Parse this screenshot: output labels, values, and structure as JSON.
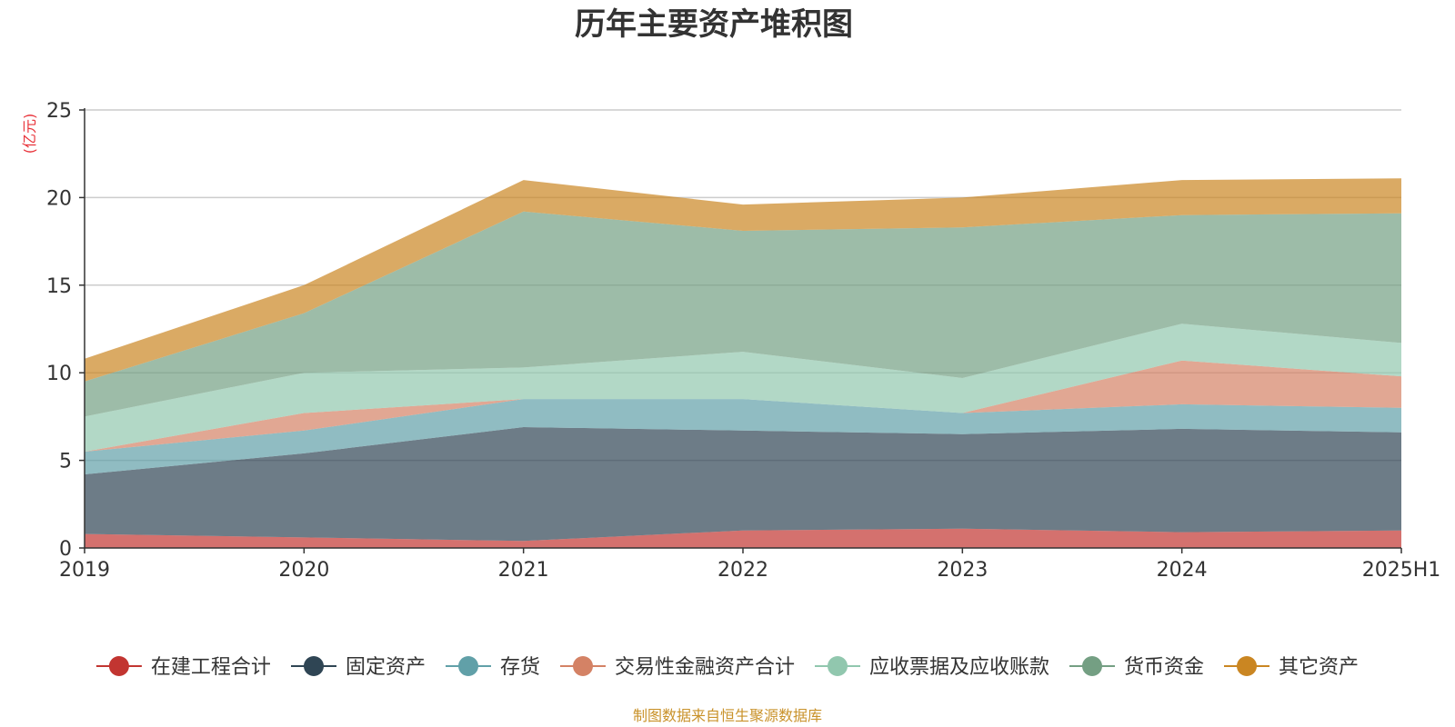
{
  "chart_data": {
    "type": "area",
    "stacked": true,
    "title": "历年主要资产堆积图",
    "ylabel": "(亿元)",
    "xlabel": "",
    "ylim": [
      0,
      25
    ],
    "yticks": [
      0,
      5,
      10,
      15,
      20,
      25
    ],
    "grid": true,
    "legend_position": "bottom",
    "categories": [
      "2019",
      "2020",
      "2021",
      "2022",
      "2023",
      "2024",
      "2025H1"
    ],
    "series": [
      {
        "name": "在建工程合计",
        "color": "#c23531",
        "values": [
          0.8,
          0.6,
          0.4,
          1.0,
          1.1,
          0.9,
          1.0
        ]
      },
      {
        "name": "固定资产",
        "color": "#2f4554",
        "values": [
          3.4,
          4.8,
          6.5,
          5.7,
          5.4,
          5.9,
          5.6
        ]
      },
      {
        "name": "存货",
        "color": "#61a0a8",
        "values": [
          1.3,
          1.3,
          1.6,
          1.8,
          1.2,
          1.4,
          1.4
        ]
      },
      {
        "name": "交易性金融资产合计",
        "color": "#d48265",
        "values": [
          0.0,
          1.0,
          0.0,
          0.0,
          0.0,
          2.5,
          1.8
        ]
      },
      {
        "name": "应收票据及应收账款",
        "color": "#91c7ae",
        "values": [
          2.0,
          2.3,
          1.8,
          2.7,
          2.0,
          2.1,
          1.9
        ]
      },
      {
        "name": "货币资金",
        "color": "#749f83",
        "values": [
          2.0,
          3.4,
          8.9,
          6.9,
          8.6,
          6.2,
          7.4
        ]
      },
      {
        "name": "其它资产",
        "color": "#ca8622",
        "values": [
          1.3,
          1.6,
          1.8,
          1.5,
          1.7,
          2.0,
          2.0
        ]
      }
    ]
  },
  "footer": {
    "source": "制图数据来自恒生聚源数据库"
  }
}
